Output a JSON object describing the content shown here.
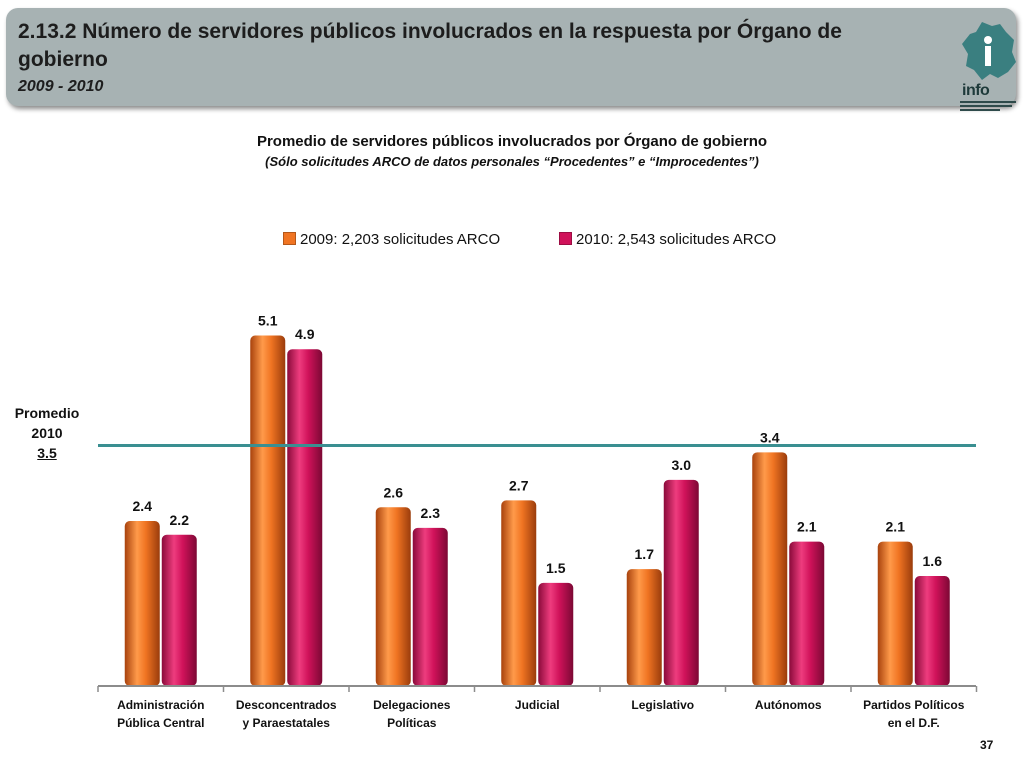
{
  "header": {
    "title": "2.13.2 Número de servidores públicos involucrados en la respuesta por Órgano de gobierno",
    "years": "2009 - 2010",
    "logo_text": "info"
  },
  "page_number": "37",
  "colors": {
    "header_bg": "#a7b2b3",
    "series_2009": "#f07422",
    "series_2010": "#d0125a",
    "average_line": "#3a8f91"
  },
  "chart_data": {
    "type": "bar",
    "title": "Promedio de servidores públicos involucrados por Órgano de gobierno",
    "subtitle": "(Sólo solicitudes ARCO de datos personales “Procedentes” e “Improcedentes”)",
    "categories": [
      [
        "Administración",
        "Pública Central"
      ],
      [
        "Desconcentrados",
        "y Paraestatales"
      ],
      [
        "Delegaciones",
        "Políticas"
      ],
      [
        "Judicial"
      ],
      [
        "Legislativo"
      ],
      [
        "Autónomos"
      ],
      [
        "Partidos Políticos",
        "en el D.F."
      ]
    ],
    "series": [
      {
        "name": "2009: 2,203 solicitudes ARCO",
        "values": [
          2.4,
          5.1,
          2.6,
          2.7,
          1.7,
          3.4,
          2.1
        ],
        "labels": [
          "2.4",
          "5.1",
          "2.6",
          "2.7",
          "1.7",
          "3.4",
          "2.1"
        ]
      },
      {
        "name": "2010: 2,543 solicitudes ARCO",
        "values": [
          2.2,
          4.9,
          2.3,
          1.5,
          3.0,
          2.1,
          1.6
        ],
        "labels": [
          "2.2",
          "4.9",
          "2.3",
          "1.5",
          "3.0",
          "2.1",
          "1.6"
        ]
      }
    ],
    "reference_line": {
      "label": [
        "Promedio",
        "2010"
      ],
      "value": 3.5,
      "value_label": "3.5"
    },
    "ylim": [
      0,
      5.5
    ],
    "legend_position": "top-center",
    "grid": false
  }
}
